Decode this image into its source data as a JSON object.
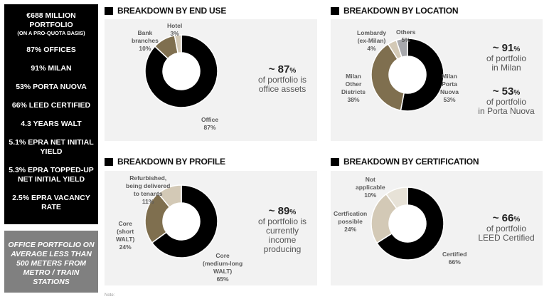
{
  "sidebar": {
    "headline": "€688 MILLION PORTFOLIO",
    "headline_line1": "€688 MILLION",
    "headline_line2": "PORTFOLIO",
    "headline_sub": "(ON A PRO-QUOTA BASIS)",
    "items": [
      {
        "lines": [
          "87% OFFICES"
        ]
      },
      {
        "lines": [
          "91% MILAN"
        ]
      },
      {
        "lines": [
          "53% PORTA NUOVA"
        ]
      },
      {
        "lines": [
          "66% LEED CERTIFIED"
        ]
      },
      {
        "lines": [
          "4.3 YEARS WALT"
        ]
      },
      {
        "lines": [
          "5.1% EPRA NET INITIAL",
          "YIELD"
        ]
      },
      {
        "lines": [
          "5.3% EPRA TOPPED-UP",
          "NET INITIAL YIELD"
        ]
      },
      {
        "lines": [
          "2.5% EPRA VACANCY",
          "RATE"
        ]
      }
    ],
    "highlight_lines": [
      "OFFICE PORTFOLIO ON",
      "AVERAGE LESS THAN",
      "500 METERS FROM",
      "METRO / TRAIN",
      "STATIONS"
    ]
  },
  "colors": {
    "black": "#000000",
    "brown": "#7f6f4f",
    "beige": "#d3c9b6",
    "light_beige": "#e7e2d7",
    "gray": "#a7a8ac",
    "panel_bg": "#f2f2f2",
    "sidebar_gray": "#808080"
  },
  "note": "Note:",
  "chart_data": [
    {
      "type": "pie",
      "variant": "donut",
      "title": "BREAKDOWN BY END USE",
      "slices": [
        {
          "label_lines": [
            "Office",
            "87%"
          ],
          "label": "Office",
          "value": 87,
          "color": "#000000"
        },
        {
          "label_lines": [
            "Bank",
            "branches",
            "10%"
          ],
          "label": "Bank branches",
          "value": 10,
          "color": "#7f6f4f"
        },
        {
          "label_lines": [
            "Hotel",
            "3%"
          ],
          "label": "Hotel",
          "value": 3,
          "color": "#d3c9b6"
        }
      ],
      "callout": {
        "prefix": "~ ",
        "value": "87",
        "unit": "%",
        "lines": [
          "of portfolio is",
          "office assets"
        ]
      }
    },
    {
      "type": "pie",
      "variant": "donut",
      "title": "BREAKDOWN BY LOCATION",
      "slices": [
        {
          "label_lines": [
            "Milan",
            "Porta",
            "Nuova",
            "53%"
          ],
          "label": "Milan Porta Nuova",
          "value": 53,
          "color": "#000000"
        },
        {
          "label_lines": [
            "Milan",
            "Other",
            "Districts",
            "38%"
          ],
          "label": "Milan Other Districts",
          "value": 38,
          "color": "#7f6f4f"
        },
        {
          "label_lines": [
            "Lombardy",
            "(ex-Milan)",
            "4%"
          ],
          "label": "Lombardy (ex-Milan)",
          "value": 4,
          "color": "#d3c9b6"
        },
        {
          "label_lines": [
            "Others",
            "5%"
          ],
          "label": "Others",
          "value": 5,
          "color": "#a7a8ac"
        }
      ],
      "callouts": [
        {
          "prefix": "~ ",
          "value": "91",
          "unit": "%",
          "lines": [
            "of portfolio",
            "in Milan"
          ]
        },
        {
          "prefix": "~ ",
          "value": "53",
          "unit": "%",
          "lines": [
            "of portfolio",
            "in Porta Nuova"
          ]
        }
      ]
    },
    {
      "type": "pie",
      "variant": "donut",
      "title": "BREAKDOWN BY PROFILE",
      "slices": [
        {
          "label_lines": [
            "Core",
            "(medium-long",
            "WALT)",
            "65%"
          ],
          "label": "Core (medium-long WALT)",
          "value": 65,
          "color": "#000000"
        },
        {
          "label_lines": [
            "Core",
            "(short",
            "WALT)",
            "24%"
          ],
          "label": "Core (short WALT)",
          "value": 24,
          "color": "#7f6f4f"
        },
        {
          "label_lines": [
            "Refurbished,",
            "being delivered",
            "to tenants",
            "11%"
          ],
          "label": "Refurbished, being delivered to tenants",
          "value": 11,
          "color": "#d3c9b6"
        }
      ],
      "callout": {
        "prefix": "~ ",
        "value": "89",
        "unit": "%",
        "lines": [
          "of portfolio is",
          "currently",
          "income",
          "producing"
        ]
      }
    },
    {
      "type": "pie",
      "variant": "donut",
      "title": "BREAKDOWN BY CERTIFICATION",
      "slices": [
        {
          "label_lines": [
            "Certified",
            "66%"
          ],
          "label": "Certified",
          "value": 66,
          "color": "#000000"
        },
        {
          "label_lines": [
            "Certfication",
            "possible",
            "24%"
          ],
          "label": "Certfication possible",
          "value": 24,
          "color": "#d3c9b6"
        },
        {
          "label_lines": [
            "Not",
            "applicable",
            "10%"
          ],
          "label": "Not applicable",
          "value": 10,
          "color": "#e7e2d7"
        }
      ],
      "callout": {
        "prefix": "~ ",
        "value": "66",
        "unit": "%",
        "lines": [
          "of portfolio",
          "LEED Certified"
        ]
      }
    }
  ]
}
